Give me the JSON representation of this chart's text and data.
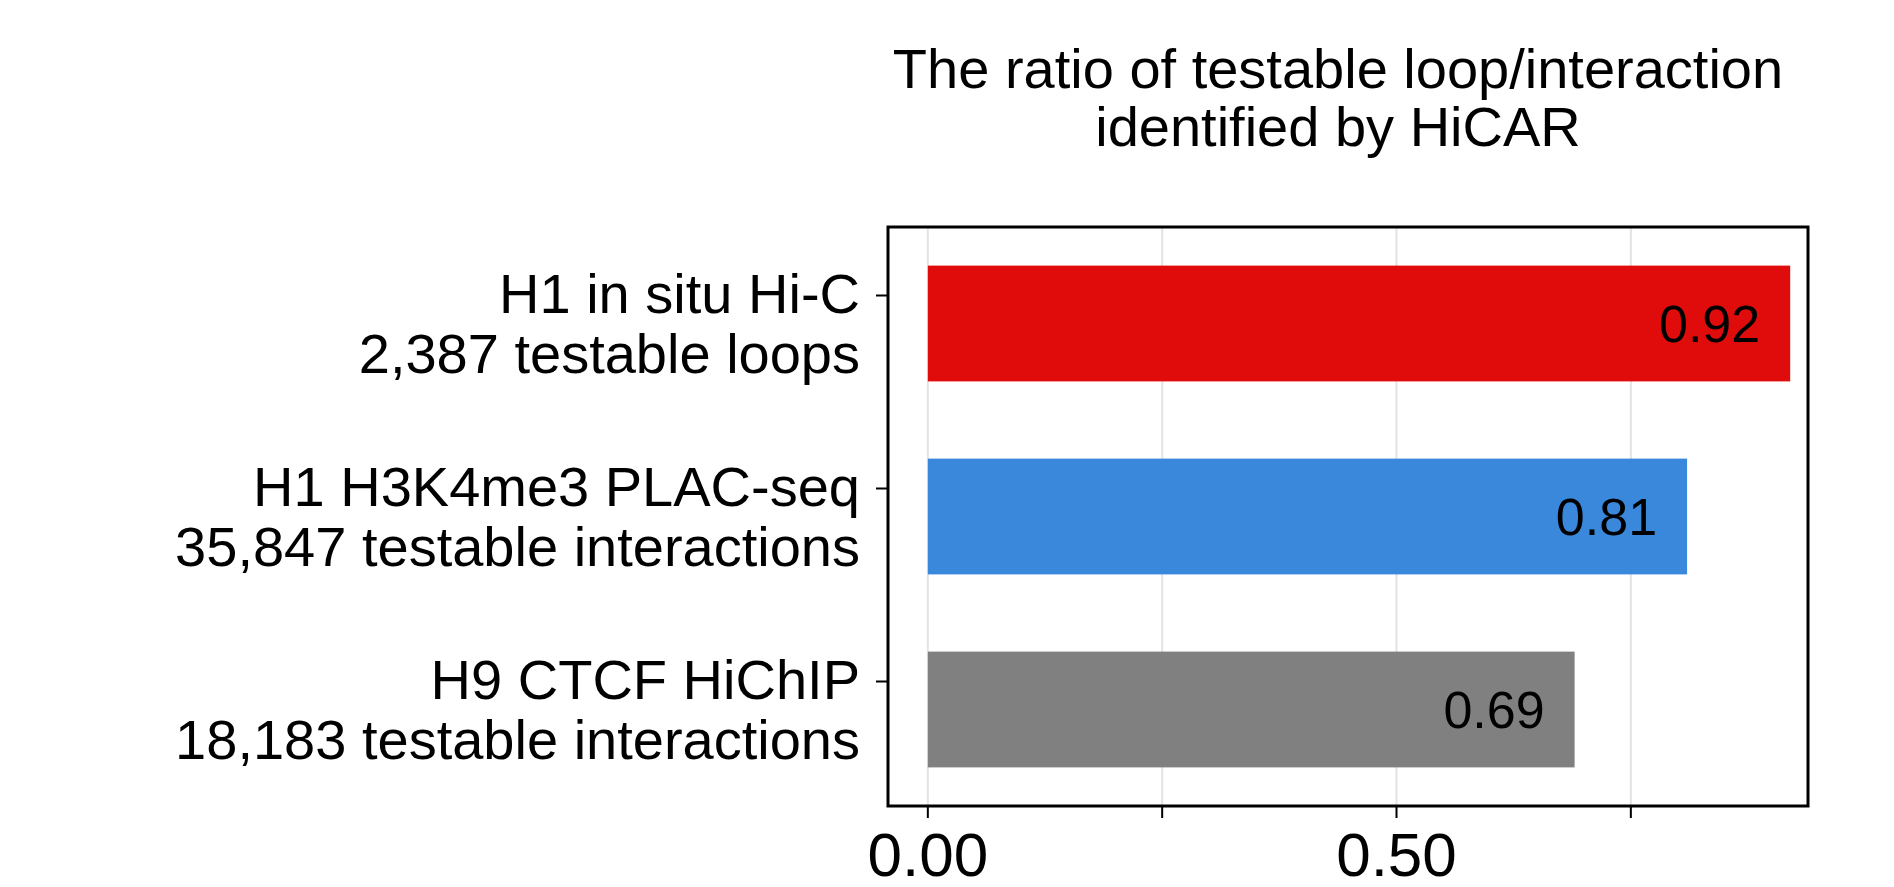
{
  "chart_data": {
    "type": "bar",
    "orientation": "horizontal",
    "title": "The ratio of testable loop/interaction\nidentified by HiCAR",
    "categories": [
      "H1 in situ Hi-C\n2,387 testable loops",
      "H1 H3K4me3 PLAC-seq\n35,847 testable interactions",
      "H9 CTCF HiChIP\n18,183 testable interactions"
    ],
    "values": [
      0.92,
      0.81,
      0.69
    ],
    "colors": [
      "#e00b0b",
      "#3a88dc",
      "#808080"
    ],
    "xlim": [
      -0.0425,
      0.939
    ],
    "xticks": [
      {
        "value": 0,
        "label": "0.00"
      },
      {
        "value": 0.25,
        "label": null
      },
      {
        "value": 0.5,
        "label": "0.50"
      },
      {
        "value": 0.75,
        "label": null
      }
    ],
    "grid": "x",
    "data_labels": true
  }
}
